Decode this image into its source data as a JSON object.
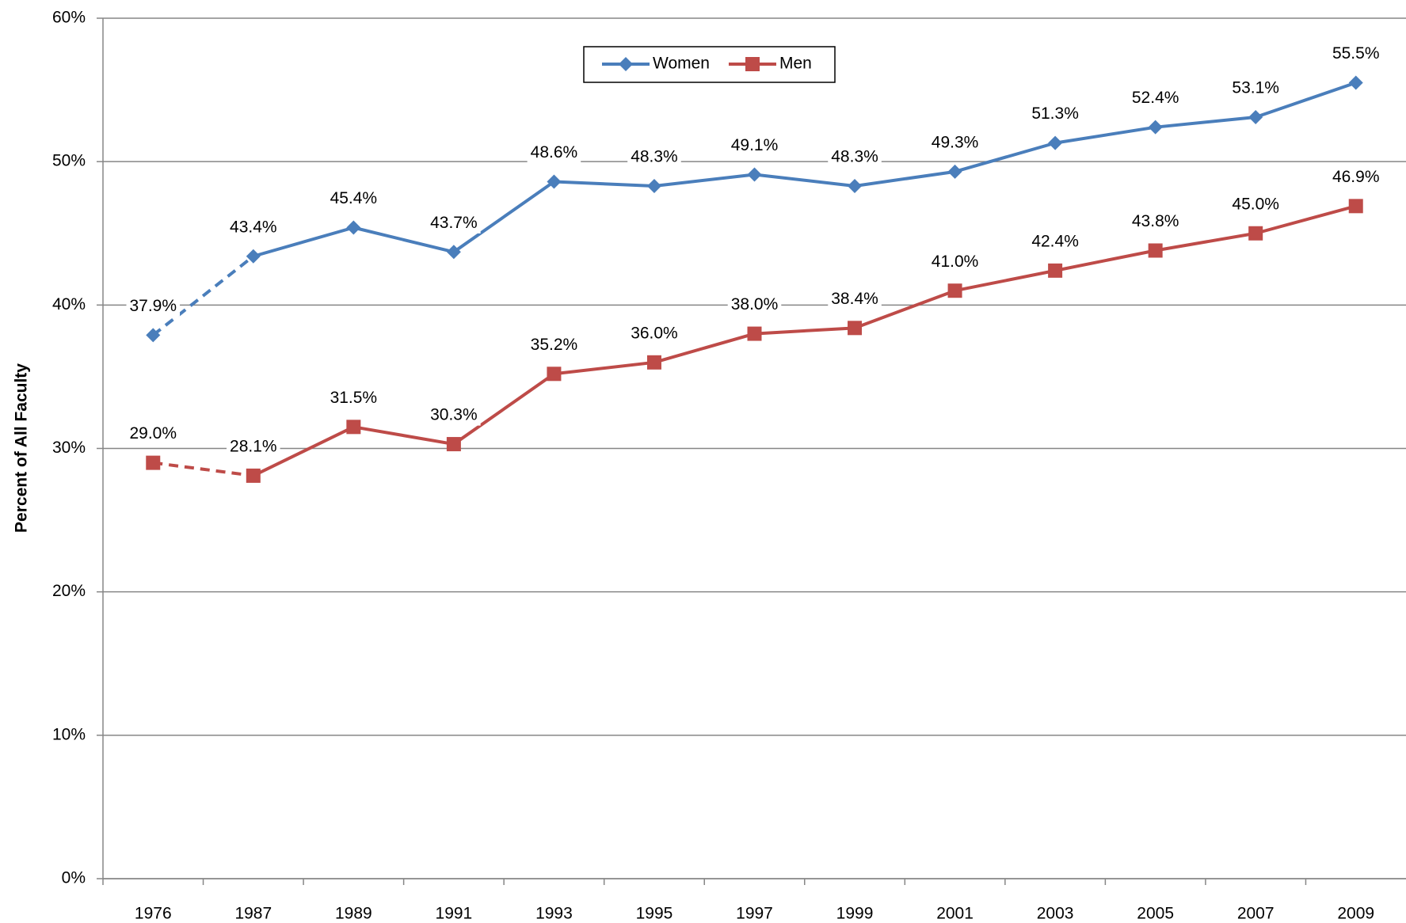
{
  "chart_data": {
    "type": "line",
    "y_label": "Percent of All Faculty",
    "categories": [
      "1976",
      "1987",
      "1989",
      "1991",
      "1993",
      "1995",
      "1997",
      "1999",
      "2001",
      "2003",
      "2005",
      "2007",
      "2009"
    ],
    "series": [
      {
        "name": "Women",
        "color": "#4a7ebb",
        "marker": "diamond",
        "dashed_segments": [
          0
        ],
        "values": [
          37.9,
          43.4,
          45.4,
          43.7,
          48.6,
          48.3,
          49.1,
          48.3,
          49.3,
          51.3,
          52.4,
          53.1,
          55.5
        ],
        "value_labels": [
          "37.9%",
          "43.4%",
          "45.4%",
          "43.7%",
          "48.6%",
          "48.3%",
          "49.1%",
          "48.3%",
          "49.3%",
          "51.3%",
          "52.4%",
          "53.1%",
          "55.5%"
        ]
      },
      {
        "name": "Men",
        "color": "#be4b48",
        "marker": "square",
        "dashed_segments": [
          0
        ],
        "values": [
          29.0,
          28.1,
          31.5,
          30.3,
          35.2,
          36.0,
          38.0,
          38.4,
          41.0,
          42.4,
          43.8,
          45.0,
          46.9
        ],
        "value_labels": [
          "29.0%",
          "28.1%",
          "31.5%",
          "30.3%",
          "35.2%",
          "36.0%",
          "38.0%",
          "38.4%",
          "41.0%",
          "42.4%",
          "43.8%",
          "45.0%",
          "46.9%"
        ]
      }
    ],
    "ylim": [
      0,
      60
    ],
    "yticks": [
      {
        "value": 0,
        "label": "0%"
      },
      {
        "value": 10,
        "label": "10%"
      },
      {
        "value": 20,
        "label": "20%"
      },
      {
        "value": 30,
        "label": "30%"
      },
      {
        "value": 40,
        "label": "40%"
      },
      {
        "value": 50,
        "label": "50%"
      },
      {
        "value": 60,
        "label": "60%"
      }
    ],
    "grid": true,
    "legend": "top"
  }
}
